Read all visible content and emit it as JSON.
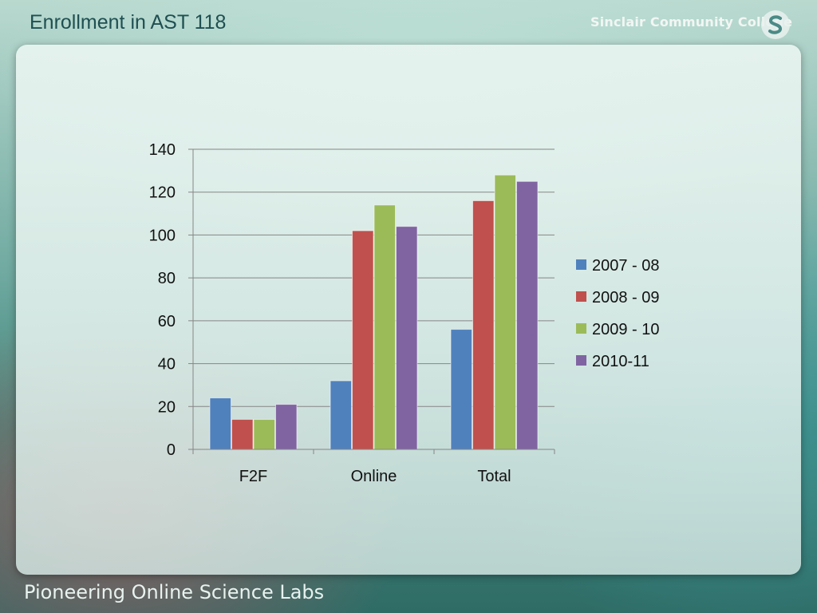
{
  "slide": {
    "title": "Enrollment in AST 118",
    "college_name": "Sinclair Community College",
    "footer": "Pioneering Online Science Labs"
  },
  "colors": {
    "series": [
      "#4f81bd",
      "#c0504d",
      "#9bbb59",
      "#8064a2"
    ],
    "gridline": "#868686",
    "axis": "#868686",
    "title": "#1f4f52"
  },
  "chart_data": {
    "type": "bar",
    "categories": [
      "F2F",
      "Online",
      "Total"
    ],
    "series": [
      {
        "name": "2007 - 08",
        "values": [
          24,
          32,
          56
        ]
      },
      {
        "name": "2008 - 09",
        "values": [
          14,
          102,
          116
        ]
      },
      {
        "name": "2009 - 10",
        "values": [
          14,
          114,
          128
        ]
      },
      {
        "name": "2010-11",
        "values": [
          21,
          104,
          125
        ]
      }
    ],
    "ylim": [
      0,
      140
    ],
    "yticks": [
      0,
      20,
      40,
      60,
      80,
      100,
      120,
      140
    ],
    "grid": true,
    "legend": "right",
    "title": "",
    "xlabel": "",
    "ylabel": ""
  }
}
